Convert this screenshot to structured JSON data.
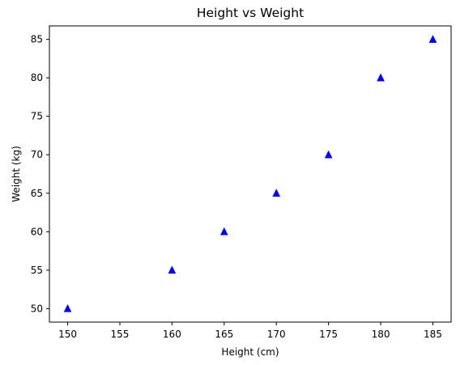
{
  "chart_data": {
    "type": "scatter",
    "title": "Height vs Weight",
    "xlabel": "Height (cm)",
    "ylabel": "Weight (kg)",
    "xlim": [
      148.25,
      186.75
    ],
    "ylim": [
      48.25,
      86.75
    ],
    "xticks": [
      150,
      155,
      160,
      165,
      170,
      175,
      180,
      185
    ],
    "yticks": [
      50,
      55,
      60,
      65,
      70,
      75,
      80,
      85
    ],
    "grid": false,
    "marker": "triangle-up",
    "marker_color": "#0000ff",
    "series": [
      {
        "x": [
          150,
          160,
          165,
          170,
          175,
          180,
          185
        ],
        "y": [
          50,
          55,
          60,
          65,
          70,
          80,
          85
        ]
      }
    ]
  }
}
